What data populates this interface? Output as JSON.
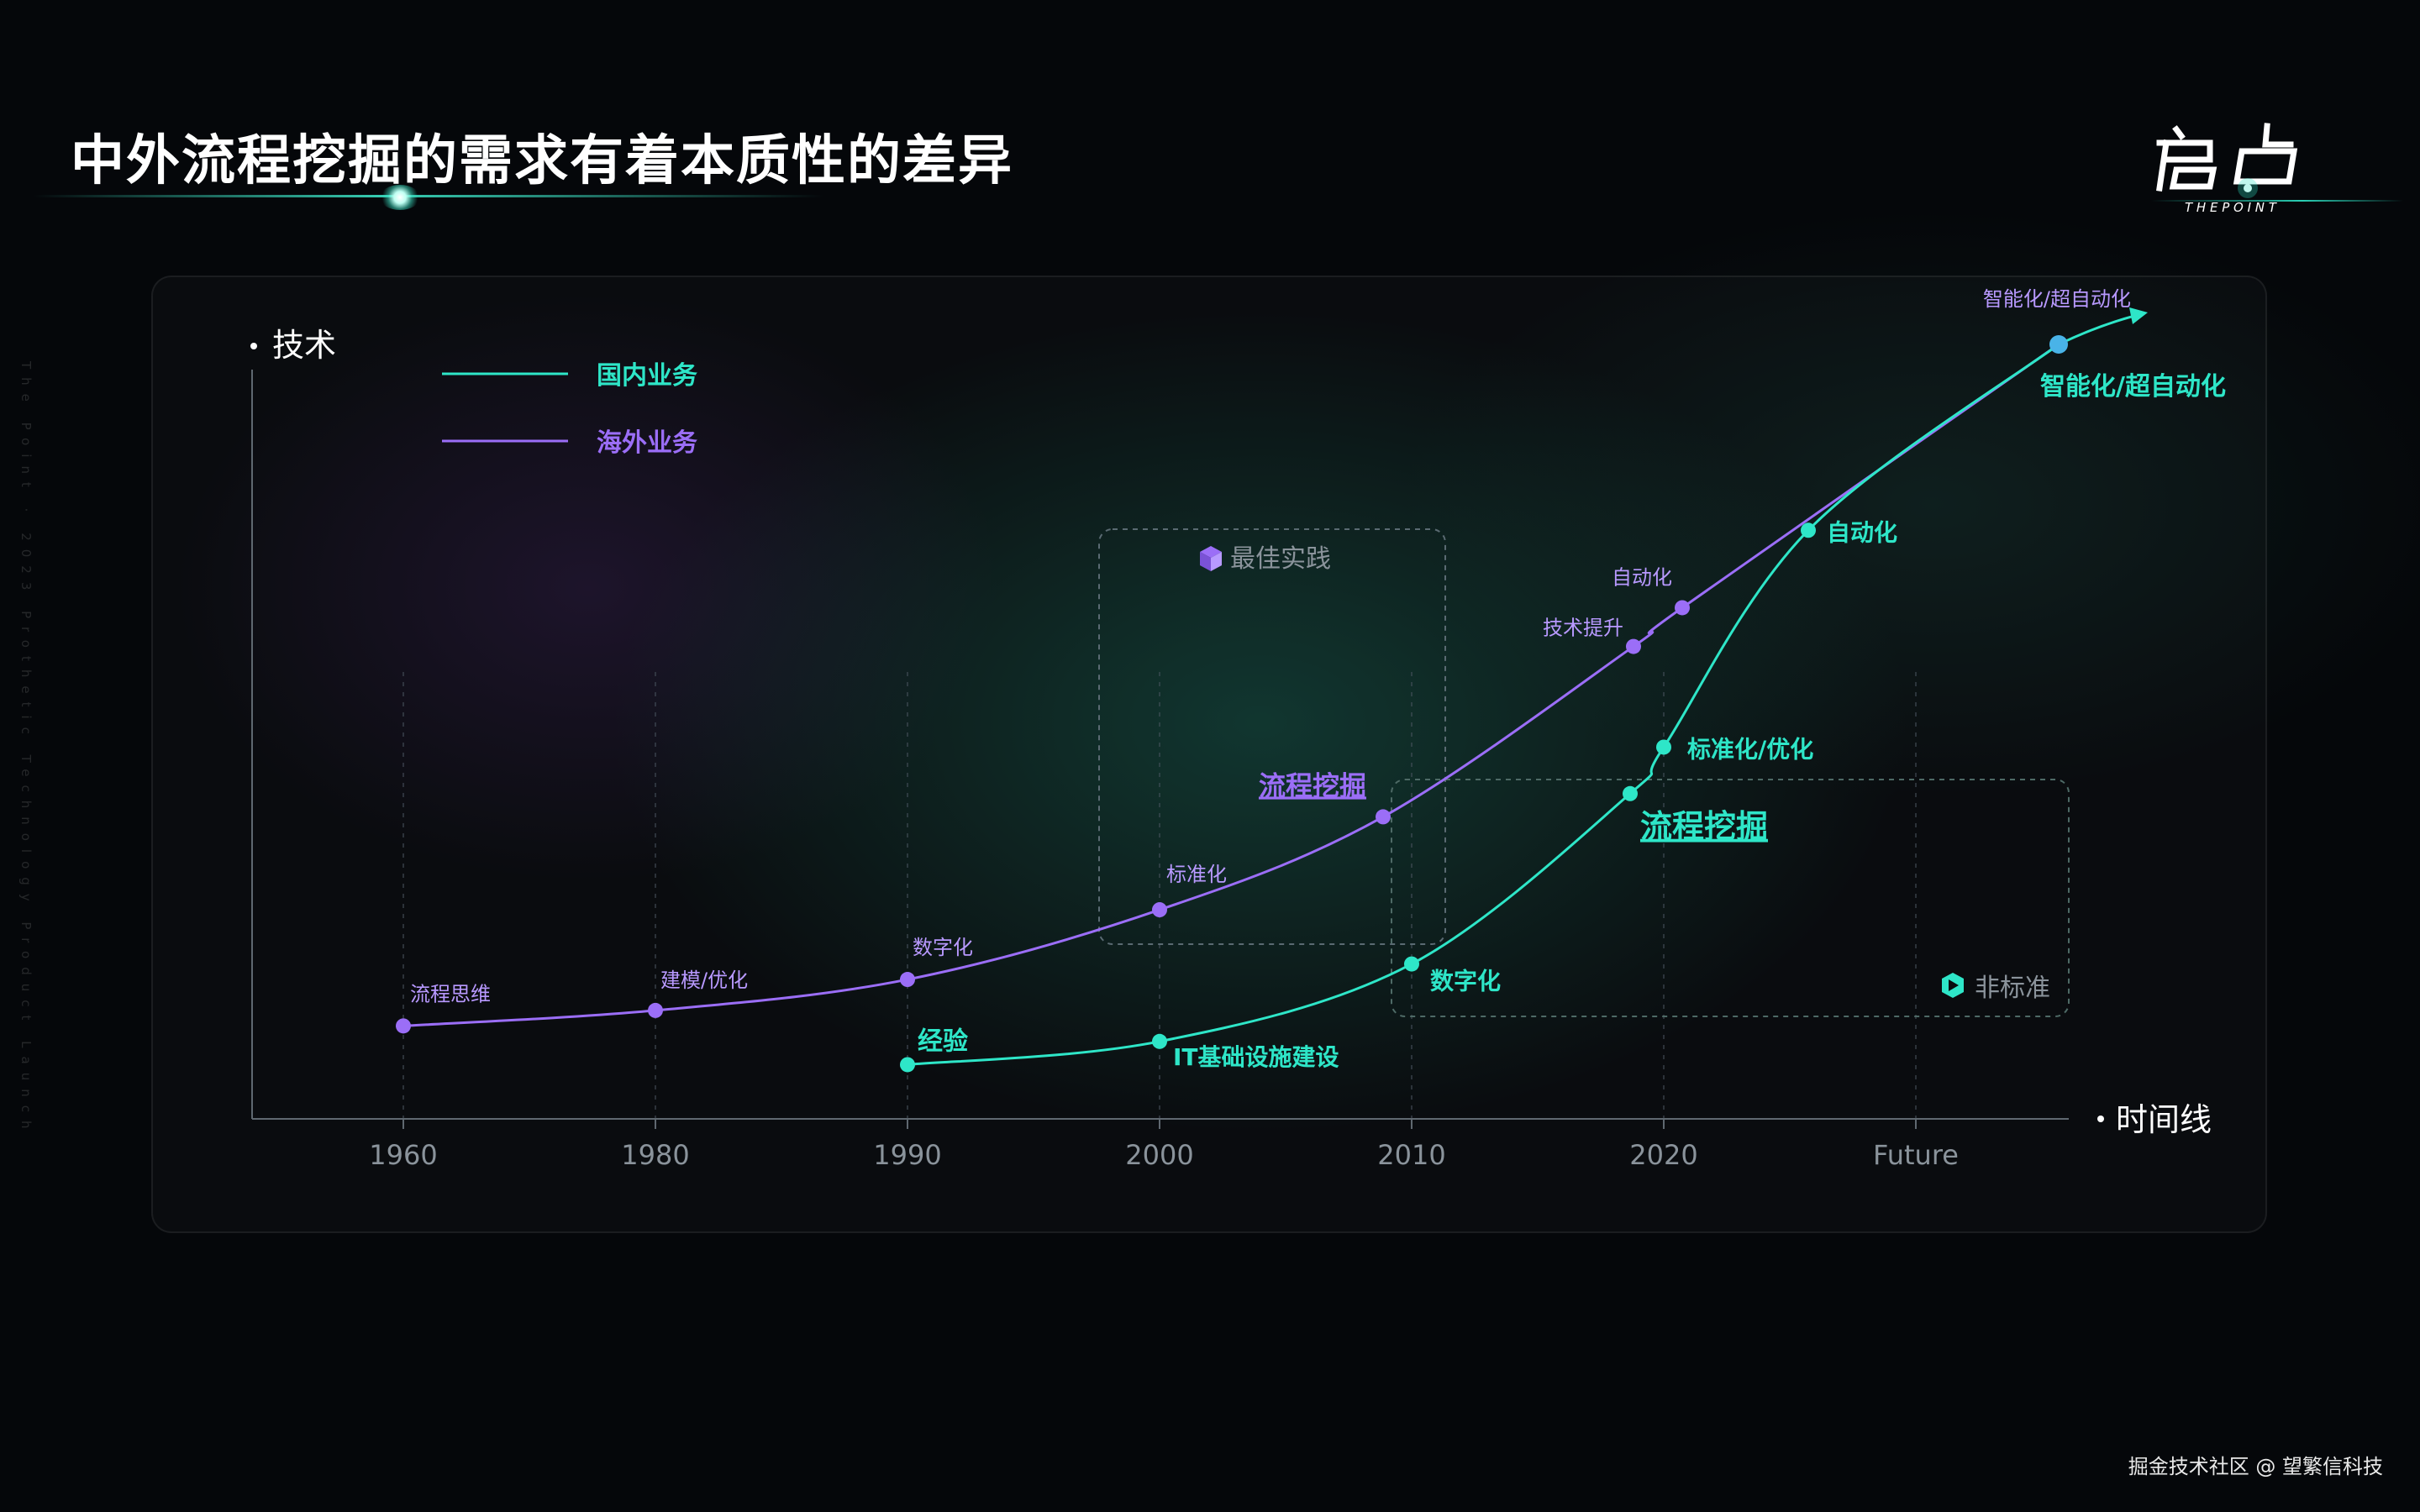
{
  "page": {
    "title": "中外流程挖掘的需求有着本质性的差异",
    "logo_text": "启点",
    "logo_subtitle": "T H E   P O I N T",
    "side_text": "The Point  ·  2023 Prothetic Technology Product Launch",
    "watermark": "掘金技术社区 @ 望繁信科技"
  },
  "colors": {
    "domestic": "#2ee6c8",
    "overseas": "#9b6ef7",
    "axis": "#5f6870",
    "grid": "#4a5560"
  },
  "chart_data": {
    "type": "line",
    "ylabel": "技术",
    "xlabel": "时间线",
    "x_ticks": [
      "1960",
      "1980",
      "1990",
      "2000",
      "2010",
      "2020",
      "Future"
    ],
    "legend": [
      {
        "name": "国内业务",
        "color": "#2ee6c8"
      },
      {
        "name": "海外业务",
        "color": "#9b6ef7"
      }
    ],
    "legend_position": "top-left",
    "series": [
      {
        "name": "海外业务",
        "color": "#9b6ef7",
        "points": [
          {
            "x": "1960",
            "y": 0.12,
            "label": "流程思维"
          },
          {
            "x": "1980",
            "y": 0.14,
            "label": "建模/优化"
          },
          {
            "x": "1990",
            "y": 0.18,
            "label": "数字化"
          },
          {
            "x": "2000",
            "y": 0.27,
            "label": "标准化"
          },
          {
            "x": "2010",
            "y": 0.39,
            "label": "流程挖掘",
            "highlight": true
          },
          {
            "x": "2020",
            "y": 0.61,
            "label": "技术提升"
          },
          {
            "x": "2020",
            "y": 0.66,
            "label": "自动化"
          },
          {
            "x": "Future",
            "y": 1.0,
            "label": "智能化/超自动化"
          }
        ]
      },
      {
        "name": "国内业务",
        "color": "#2ee6c8",
        "points": [
          {
            "x": "1990",
            "y": 0.07,
            "label": "经验"
          },
          {
            "x": "2000",
            "y": 0.1,
            "label": "IT基础设施建设"
          },
          {
            "x": "2010",
            "y": 0.2,
            "label": "数字化"
          },
          {
            "x": "2020",
            "y": 0.42,
            "label": "流程挖掘",
            "highlight": true
          },
          {
            "x": "2020",
            "y": 0.48,
            "label": "标准化/优化"
          },
          {
            "x": "Future",
            "y": 0.76,
            "label": "自动化"
          },
          {
            "x": "Future",
            "y": 1.0,
            "label": "智能化/超自动化"
          }
        ]
      }
    ],
    "regions": [
      {
        "label": "最佳实践",
        "icon": "cube-icon",
        "color": "#9b6ef7"
      },
      {
        "label": "非标准",
        "icon": "hexagon-play-icon",
        "color": "#2ee6c8"
      }
    ]
  }
}
